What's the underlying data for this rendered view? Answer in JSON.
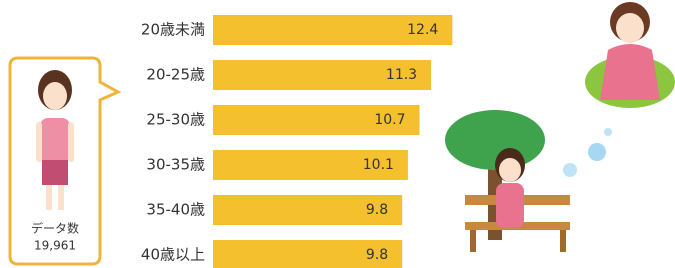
{
  "chart_data": {
    "type": "bar",
    "orientation": "horizontal",
    "categories": [
      "20歳未満",
      "20-25歳",
      "25-30歳",
      "30-35歳",
      "35-40歳",
      "40歳以上"
    ],
    "values": [
      12.4,
      11.3,
      10.7,
      10.1,
      9.8,
      9.8
    ],
    "color": "#f4c02d"
  },
  "callout": {
    "label": "データ数",
    "count": "19,961"
  }
}
